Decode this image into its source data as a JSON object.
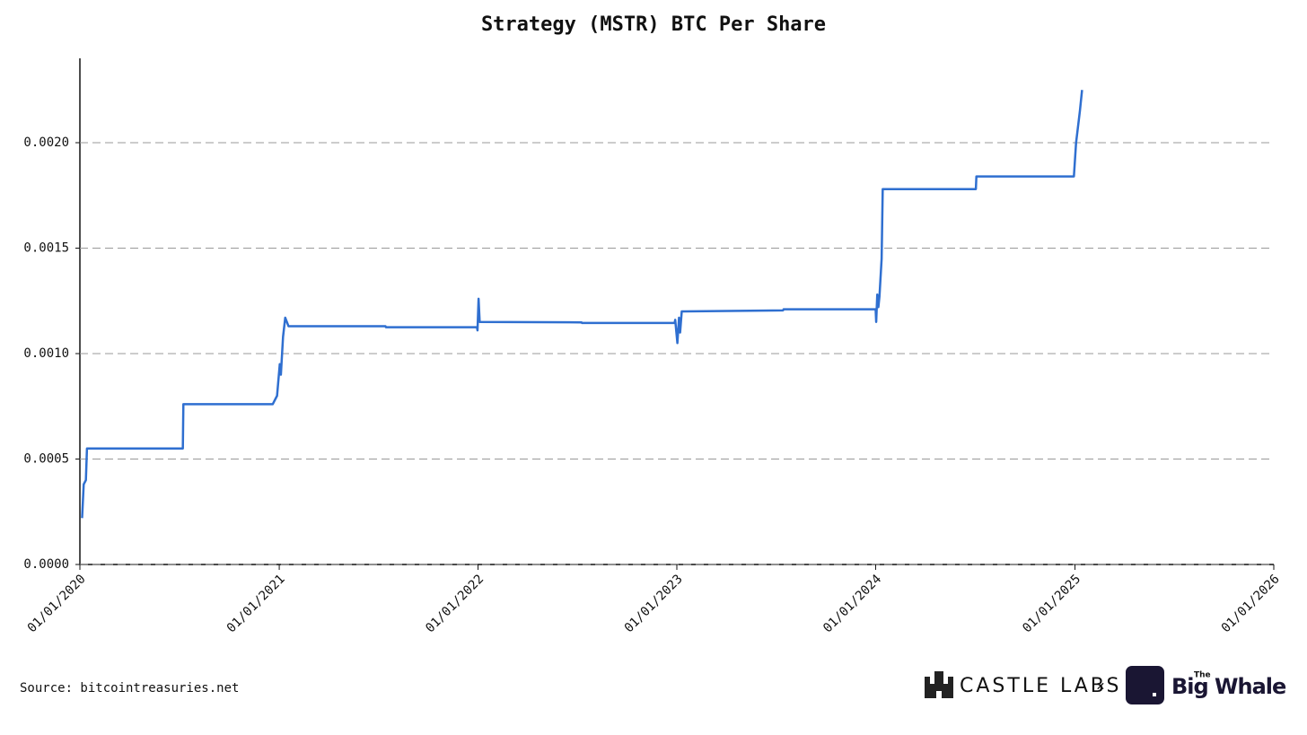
{
  "chart_data": {
    "type": "line",
    "title": "Strategy (MSTR) BTC Per Share",
    "x": [
      "2020-01-05",
      "2020-01-08",
      "2020-01-12",
      "2020-01-14",
      "2020-07-08",
      "2020-07-09",
      "2020-12-20",
      "2020-12-28",
      "2021-01-02",
      "2021-01-04",
      "2021-01-08",
      "2021-01-12",
      "2021-01-18",
      "2021-07-15",
      "2021-07-16",
      "2021-12-30",
      "2021-12-31",
      "2022-01-02",
      "2022-01-04",
      "2022-07-10",
      "2022-07-11",
      "2022-12-28",
      "2022-12-29",
      "2023-01-02",
      "2023-01-05",
      "2023-01-07",
      "2023-01-10",
      "2023-07-15",
      "2023-07-16",
      "2024-01-01",
      "2024-01-02",
      "2024-01-04",
      "2024-01-06",
      "2024-01-08",
      "2024-01-12",
      "2024-01-14",
      "2024-07-03",
      "2024-07-04",
      "2024-12-30",
      "2025-01-03",
      "2025-01-10",
      "2025-01-14"
    ],
    "series": [
      {
        "name": "BTC Per Share",
        "color": "#2f6fd0",
        "values": [
          0.00022,
          0.00038,
          0.0004,
          0.00055,
          0.00055,
          0.00076,
          0.00076,
          0.0008,
          0.00095,
          0.0009,
          0.00108,
          0.00117,
          0.00113,
          0.00113,
          0.001125,
          0.001125,
          0.00111,
          0.00126,
          0.00115,
          0.001148,
          0.001145,
          0.001145,
          0.00116,
          0.00105,
          0.00117,
          0.0011,
          0.0012,
          0.001205,
          0.00121,
          0.00121,
          0.00115,
          0.00128,
          0.00122,
          0.00127,
          0.00145,
          0.00178,
          0.00178,
          0.00184,
          0.00184,
          0.002,
          0.00215,
          0.00225
        ]
      }
    ],
    "xlim": [
      "2020-01-01",
      "2026-01-01"
    ],
    "xticks": [
      {
        "value": "2020-01-01",
        "label": "01/01/2020"
      },
      {
        "value": "2021-01-01",
        "label": "01/01/2021"
      },
      {
        "value": "2022-01-01",
        "label": "01/01/2022"
      },
      {
        "value": "2023-01-01",
        "label": "01/01/2023"
      },
      {
        "value": "2024-01-01",
        "label": "01/01/2024"
      },
      {
        "value": "2025-01-01",
        "label": "01/01/2025"
      },
      {
        "value": "2026-01-01",
        "label": "01/01/2026"
      }
    ],
    "ylim": [
      0,
      0.0024
    ],
    "yticks": [
      {
        "value": 0,
        "label": "0.0000"
      },
      {
        "value": 0.0005,
        "label": "0.0005"
      },
      {
        "value": 0.001,
        "label": "0.0010"
      },
      {
        "value": 0.0015,
        "label": "0.0015"
      },
      {
        "value": 0.002,
        "label": "0.0020"
      }
    ],
    "grid": true
  },
  "footer": {
    "source": "Source: bitcointreasuries.net",
    "brand1": "CASTLE LABS",
    "separator": "×",
    "brand2_small": "The",
    "brand2": "Big Whale"
  }
}
